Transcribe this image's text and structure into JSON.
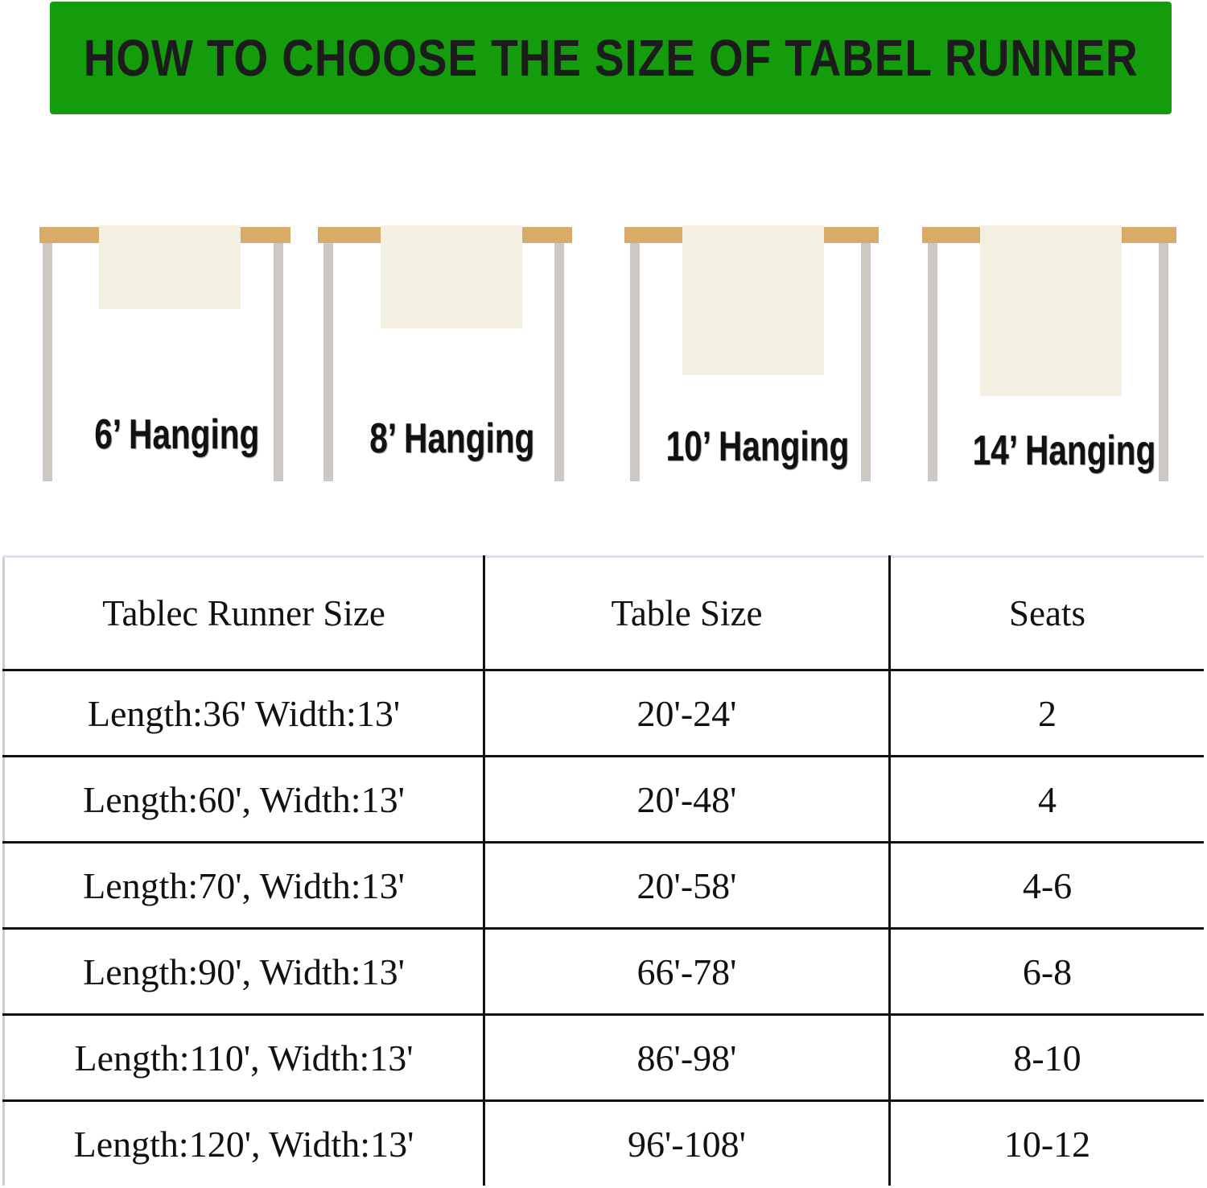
{
  "title": "HOW TO CHOOSE THE SIZE OF TABEL RUNNER",
  "colors": {
    "banner": "#149c0c",
    "tabletop": "#d8ac68",
    "legs": "#cdc8c2",
    "runner": "#f4f0e1"
  },
  "illustrations": [
    {
      "label": "6’ Hanging",
      "hang_inches": 6
    },
    {
      "label": "8’ Hanging",
      "hang_inches": 8
    },
    {
      "label": "10’ Hanging",
      "hang_inches": 10
    },
    {
      "label": "14’ Hanging",
      "hang_inches": 14
    }
  ],
  "table": {
    "headers": [
      "Tablec Runner Size",
      "Table Size",
      "Seats"
    ],
    "rows": [
      [
        "Length:36' Width:13'",
        "20'-24'",
        "2"
      ],
      [
        "Length:60', Width:13'",
        "20'-48'",
        "4"
      ],
      [
        "Length:70', Width:13'",
        "20'-58'",
        "4-6"
      ],
      [
        "Length:90',  Width:13'",
        "66'-78'",
        "6-8"
      ],
      [
        "Length:110',  Width:13'",
        "86'-98'",
        "8-10"
      ],
      [
        "Length:120',  Width:13'",
        "96'-108'",
        "10-12"
      ]
    ]
  }
}
